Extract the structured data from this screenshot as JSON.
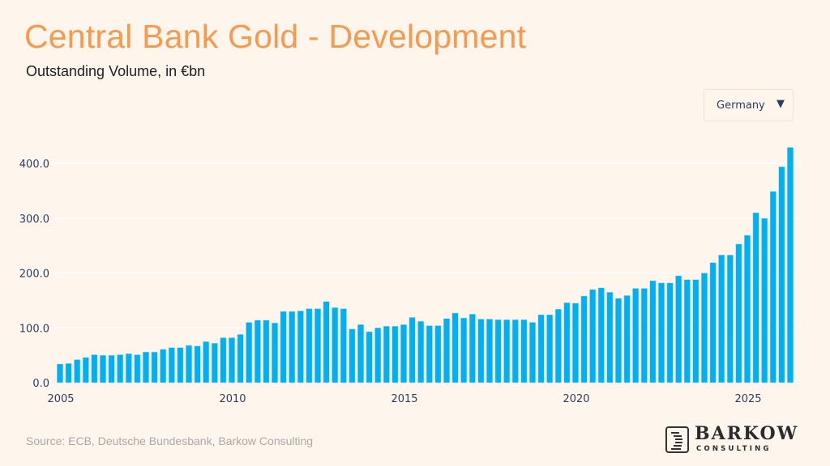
{
  "header": {
    "title": "Central Bank Gold - Development",
    "subtitle": "Outstanding Volume, in €bn"
  },
  "dropdown": {
    "selected": "Germany",
    "arrow_icon": "triangle-down-icon"
  },
  "footer": {
    "source": "Source: ECB, Deutsche Bundesbank, Barkow Consulting",
    "logo_word": "BARKOW",
    "logo_sub": "CONSULTING"
  },
  "colors": {
    "title": "#f59a4f",
    "bar": "#00b0f0",
    "grid": "#ffffff",
    "background": "#fef5ec",
    "axis_text": "#2a3f5f"
  },
  "chart_data": {
    "type": "bar",
    "title": "Central Bank Gold - Development",
    "subtitle": "Outstanding Volume, in €bn",
    "xlabel": "",
    "ylabel": "",
    "frequency": "quarterly",
    "x_start": "2005 Q1",
    "x_end": "2026 Q2",
    "ylim": [
      0,
      440
    ],
    "yticks": [
      0,
      100,
      200,
      300,
      400
    ],
    "ytick_labels": [
      "0.0",
      "100.0",
      "200.0",
      "300.0",
      "400.0"
    ],
    "xticks": [
      2005,
      2010,
      2015,
      2020,
      2025
    ],
    "xtick_labels": [
      "2005",
      "2010",
      "2015",
      "2020",
      "2025"
    ],
    "grid": true,
    "legend": "none",
    "series": [
      {
        "name": "Germany",
        "values": [
          34,
          35,
          42,
          46,
          51,
          50,
          50,
          51,
          53,
          51,
          56,
          56,
          61,
          64,
          64,
          68,
          67,
          75,
          72,
          82,
          82,
          88,
          110,
          114,
          114,
          109,
          130,
          130,
          131,
          135,
          135,
          148,
          137,
          135,
          98,
          106,
          93,
          100,
          103,
          103,
          106,
          119,
          112,
          104,
          104,
          117,
          127,
          118,
          125,
          116,
          116,
          115,
          115,
          115,
          115,
          110,
          124,
          124,
          134,
          146,
          145,
          158,
          170,
          173,
          165,
          154,
          159,
          172,
          172,
          186,
          182,
          182,
          195,
          188,
          188,
          200,
          219,
          233,
          233,
          253,
          269,
          310,
          300,
          349,
          394,
          429
        ]
      }
    ]
  }
}
